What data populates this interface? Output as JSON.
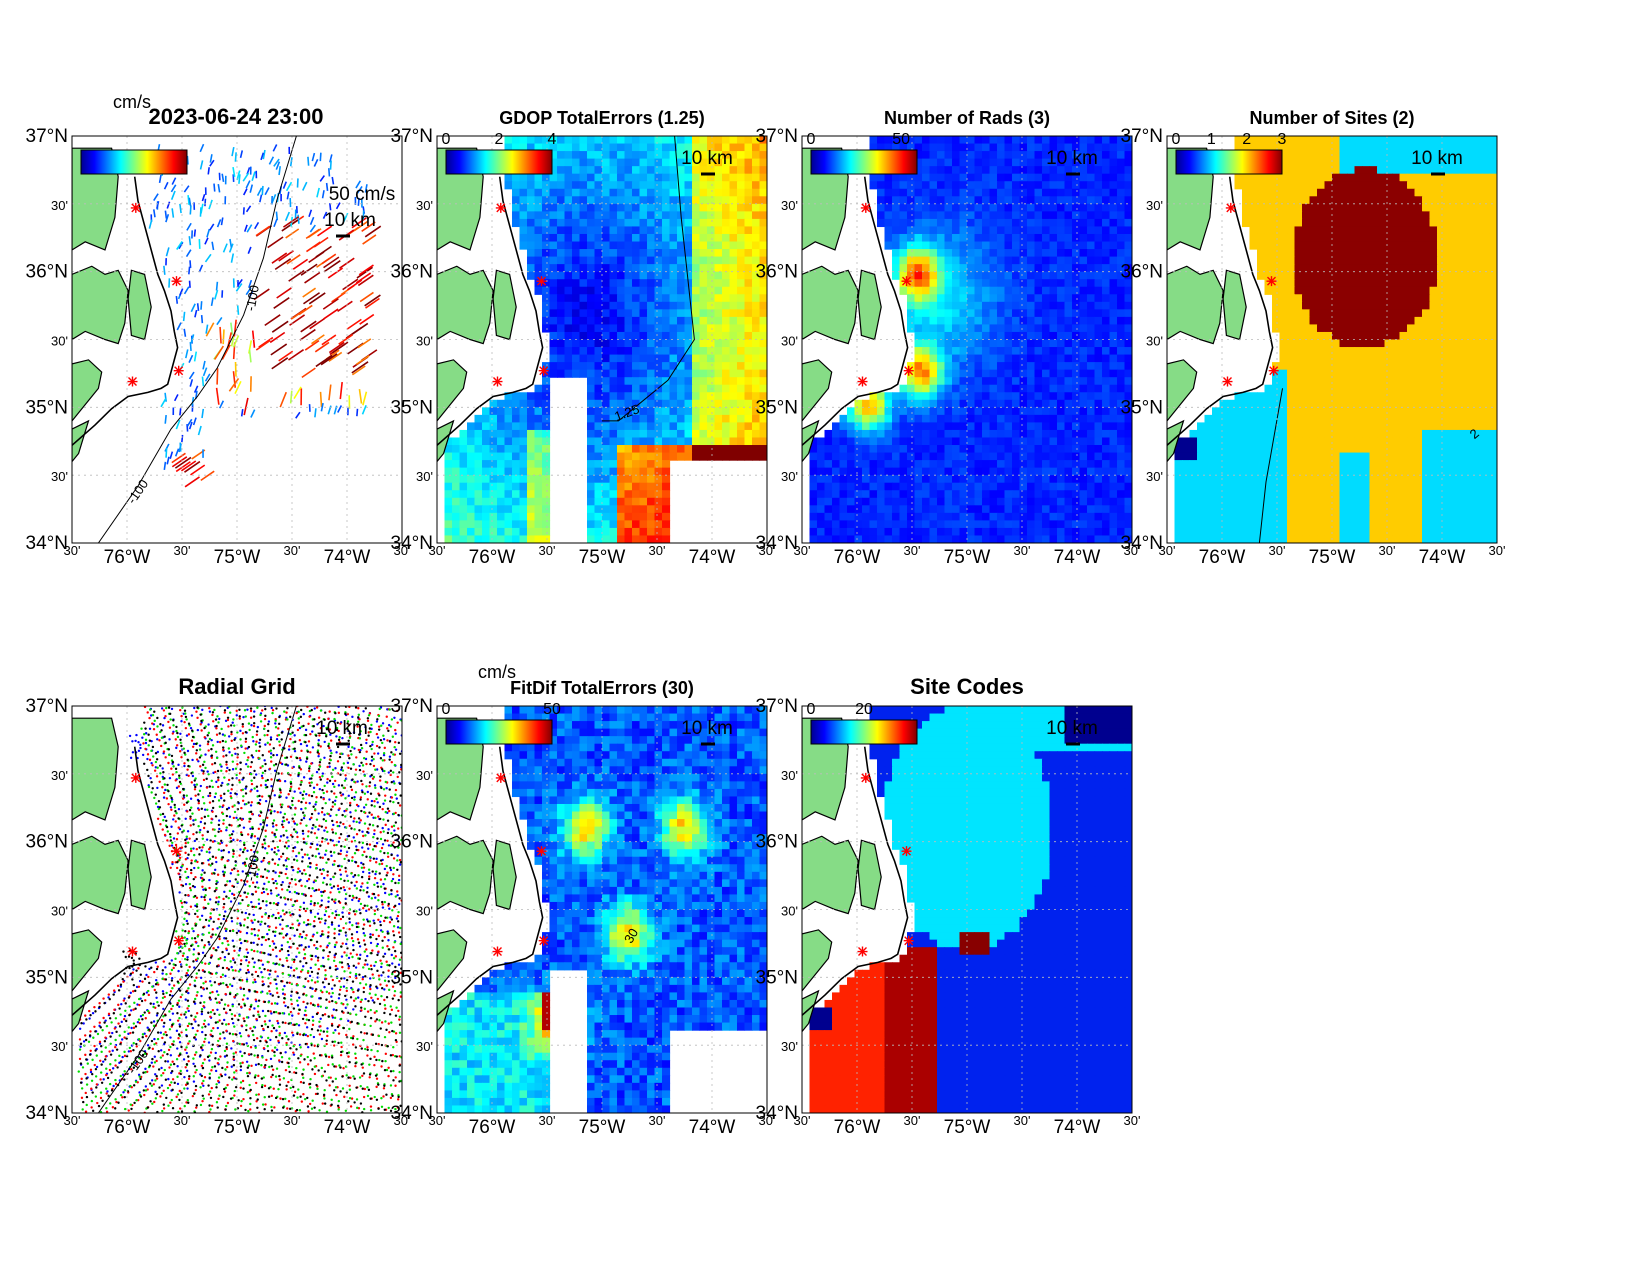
{
  "figure": {
    "timestamp": "2023-06-24 23:00",
    "colors": {
      "land": "#86dc86",
      "contour": "#000000",
      "grid": "#bbbbbb",
      "site": "#ff0000"
    }
  },
  "axes": {
    "lat_ticks": [
      "37°N",
      "30'",
      "36°N",
      "30'",
      "35°N",
      "30'",
      "34°N"
    ],
    "lon_ticks": [
      "30'",
      "76°W",
      "30'",
      "75°W",
      "30'",
      "74°W",
      "30'"
    ],
    "lon_range": [
      -76.5,
      -73.5
    ],
    "lat_range": [
      34,
      37
    ],
    "scale_label": "10 km"
  },
  "sites": [
    {
      "lon": -75.95,
      "lat": 35.19
    },
    {
      "lon": -75.53,
      "lat": 35.27
    },
    {
      "lon": -75.55,
      "lat": 35.93
    },
    {
      "lon": -75.92,
      "lat": 36.47
    }
  ],
  "panels": [
    {
      "id": "currents",
      "title": "",
      "cbar_unit": "cm/s",
      "cbar_ticks": [],
      "vector_label": "50 cm/s",
      "contour_label": "-100",
      "contour_label2": "-100"
    },
    {
      "id": "gdop",
      "title": "GDOP TotalErrors (1.25)",
      "cbar_unit": "",
      "cbar_ticks": [
        "0",
        "2",
        "4"
      ],
      "contour_label": "1.25"
    },
    {
      "id": "nrads",
      "title": "Number of Rads (3)",
      "cbar_unit": "",
      "cbar_ticks": [
        "0",
        "50"
      ]
    },
    {
      "id": "nsites",
      "title": "Number of Sites (2)",
      "cbar_unit": "",
      "cbar_ticks": [
        "0",
        "1",
        "2",
        "3"
      ],
      "contour_label": "2"
    },
    {
      "id": "radgrid",
      "title": "Radial Grid",
      "cbar_unit": "",
      "cbar_ticks": [],
      "contour_label": "-100",
      "contour_label2": "-100"
    },
    {
      "id": "fitdif",
      "title": "FitDif TotalErrors (30)",
      "cbar_unit": "cm/s",
      "cbar_ticks": [
        "0",
        "50"
      ],
      "contour_label": "30"
    },
    {
      "id": "sitecodes",
      "title": "Site Codes",
      "cbar_unit": "",
      "cbar_ticks": [
        "0",
        "20"
      ]
    }
  ]
}
